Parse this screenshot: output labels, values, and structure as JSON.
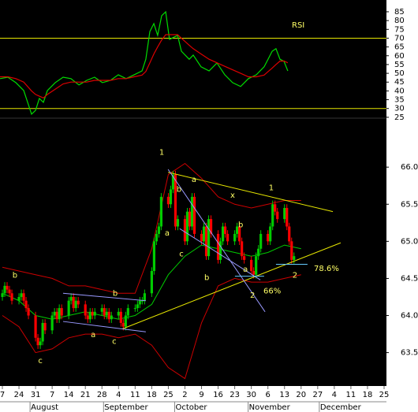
{
  "chart_data": [
    {
      "type": "line",
      "title": "RSI",
      "title_color": "#ffff66",
      "xlim": [
        -1,
        162
      ],
      "ylim": [
        24.5,
        91.7
      ],
      "yticks": [
        85,
        80,
        75,
        70,
        65,
        60,
        55,
        50,
        45,
        40,
        35,
        30,
        25
      ],
      "hlines": [
        70,
        30
      ],
      "hline_color": "#e6e600",
      "x": [
        -1,
        2.3,
        5.7,
        9.0,
        12.3,
        14.0,
        15.6,
        17.3,
        19.0,
        22.3,
        25.6,
        28.9,
        32.3,
        35.6,
        38.9,
        42.2,
        45.6,
        48.9,
        52.2,
        55.6,
        58.9,
        60.5,
        62.2,
        63.9,
        65.5,
        67.2,
        68.9,
        70.5,
        73.9,
        75.5,
        78.8,
        80.5,
        83.8,
        87.2,
        90.5,
        93.8,
        97.1,
        100.5,
        103.8,
        107.1,
        110.4,
        112.1,
        113.8,
        115.4,
        117.1,
        118.8,
        120.4
      ],
      "series": [
        {
          "color": "#00dd00",
          "values": [
            47,
            47.8,
            44.7,
            40.2,
            26.8,
            29,
            35.7,
            33.5,
            40.2,
            44.7,
            47.8,
            47,
            43.4,
            46,
            47.8,
            44.7,
            46,
            49.2,
            47,
            49.2,
            51.4,
            58,
            73.8,
            78.3,
            71.6,
            82.8,
            85,
            69.3,
            71.6,
            62.6,
            58,
            60.4,
            53.7,
            51.4,
            55.9,
            49.2,
            44.7,
            42.5,
            47,
            49.2,
            53.7,
            58.1,
            62.6,
            64,
            58,
            56.8,
            51.4
          ]
        },
        {
          "color": "#dd0000",
          "values": [
            48,
            48,
            47,
            45,
            40,
            38,
            37,
            36,
            38,
            41,
            44,
            45,
            45,
            45,
            46,
            46,
            46,
            47,
            47,
            48,
            49,
            51,
            56,
            61,
            65,
            69,
            72,
            72,
            72,
            70,
            66,
            64,
            61,
            58,
            56,
            54,
            52,
            50,
            48,
            48,
            49,
            51,
            53,
            55,
            57,
            57,
            56
          ]
        }
      ]
    },
    {
      "type": "candlestick",
      "xlim": [
        -1,
        162
      ],
      "ylim": [
        63.05,
        66.66
      ],
      "yticks": [
        {
          "value": 66,
          "label": "66.0"
        },
        65.5,
        {
          "value": 65,
          "label": "65.0"
        },
        64.5,
        {
          "value": 64,
          "label": "64.0"
        },
        63.5
      ],
      "xticks": [
        {
          "value": 0,
          "label": "7"
        },
        {
          "value": 7,
          "label": "24"
        },
        {
          "value": 14,
          "label": "31"
        },
        {
          "value": 21,
          "label": "7"
        },
        {
          "value": 28,
          "label": "14"
        },
        {
          "value": 35,
          "label": "21"
        },
        {
          "value": 42,
          "label": "28"
        },
        {
          "value": 49,
          "label": "4"
        },
        {
          "value": 56,
          "label": "11"
        },
        {
          "value": 63,
          "label": "18"
        },
        {
          "value": 70,
          "label": "25"
        },
        {
          "value": 77,
          "label": "2"
        },
        {
          "value": 84,
          "label": "9"
        },
        {
          "value": 91,
          "label": "16"
        },
        {
          "value": 98,
          "label": "23"
        },
        {
          "value": 105,
          "label": "30"
        },
        {
          "value": 112,
          "label": "6"
        },
        {
          "value": 119,
          "label": "13"
        },
        {
          "value": 126,
          "label": "20"
        },
        {
          "value": 133,
          "label": "27"
        },
        {
          "value": 140,
          "label": "4"
        },
        {
          "value": 147,
          "label": "11"
        },
        {
          "value": 154,
          "label": "18"
        },
        {
          "value": 161,
          "label": "25"
        }
      ],
      "month_ticks": [
        {
          "value": 15,
          "label": "August"
        },
        {
          "value": 46,
          "label": "September"
        },
        {
          "value": 76,
          "label": "October"
        },
        {
          "value": 107,
          "label": "November"
        },
        {
          "value": 137,
          "label": "December"
        }
      ],
      "up_color": "#00cc00",
      "down_color": "#ff0000",
      "x": [
        0,
        1,
        2,
        3,
        4,
        7,
        8,
        9,
        10,
        11,
        14,
        15,
        16,
        17,
        18,
        21,
        22,
        23,
        24,
        25,
        28,
        29,
        30,
        31,
        32,
        35,
        36,
        37,
        38,
        39,
        42,
        43,
        44,
        45,
        46,
        49,
        50,
        51,
        52,
        53,
        56,
        57,
        58,
        59,
        60,
        63,
        64,
        65,
        66,
        67,
        70,
        71,
        72,
        73,
        74,
        77,
        78,
        79,
        80,
        81,
        84,
        85,
        86,
        87,
        88,
        91,
        92,
        93,
        94,
        95,
        98,
        99,
        100,
        101,
        102,
        105,
        106,
        107,
        108,
        109,
        112,
        113,
        114,
        115,
        116,
        119,
        120,
        121,
        122,
        123
      ],
      "open": [
        64.25,
        64.3,
        64.4,
        64.35,
        64.3,
        64.2,
        64.25,
        64.3,
        64.2,
        64.1,
        64.0,
        63.7,
        63.6,
        63.65,
        63.9,
        63.8,
        64.0,
        64.05,
        63.95,
        64.1,
        64.0,
        64.2,
        64.25,
        64.1,
        64.2,
        64.15,
        64.0,
        63.95,
        64.05,
        64.0,
        64.05,
        64.1,
        64.0,
        64.05,
        63.95,
        64.0,
        64.05,
        63.9,
        63.85,
        64.0,
        64.1,
        64.1,
        64.15,
        64.2,
        64.2,
        64.3,
        64.6,
        65.0,
        65.1,
        65.2,
        65.6,
        65.5,
        65.7,
        65.9,
        65.2,
        65.3,
        65.0,
        65.4,
        65.2,
        65.6,
        65.1,
        65.0,
        65.2,
        64.8,
        65.3,
        65.1,
        64.75,
        65.0,
        65.2,
        65.1,
        65.0,
        65.1,
        65.2,
        65.0,
        64.8,
        64.75,
        64.6,
        64.55,
        64.8,
        64.9,
        65.1,
        65.0,
        65.2,
        65.5,
        65.4,
        65.3,
        65.45,
        65.2,
        65.0,
        64.75
      ],
      "high": [
        64.35,
        64.45,
        64.45,
        64.4,
        64.35,
        64.3,
        64.35,
        64.35,
        64.25,
        64.15,
        64.05,
        63.75,
        63.7,
        63.95,
        63.95,
        64.05,
        64.1,
        64.1,
        64.15,
        64.15,
        64.25,
        64.3,
        64.3,
        64.25,
        64.25,
        64.2,
        64.05,
        64.1,
        64.1,
        64.1,
        64.15,
        64.15,
        64.1,
        64.1,
        64.05,
        64.1,
        64.1,
        63.95,
        64.05,
        64.15,
        64.15,
        64.2,
        64.25,
        64.25,
        64.35,
        64.65,
        65.05,
        65.15,
        65.25,
        65.65,
        65.65,
        65.75,
        65.95,
        65.95,
        65.35,
        65.35,
        65.45,
        65.45,
        65.65,
        65.65,
        65.15,
        65.25,
        65.25,
        65.35,
        65.35,
        65.15,
        65.05,
        65.25,
        65.25,
        65.15,
        65.15,
        65.25,
        65.25,
        65.05,
        64.85,
        64.8,
        64.65,
        64.85,
        64.95,
        65.15,
        65.15,
        65.25,
        65.55,
        65.55,
        65.45,
        65.5,
        65.5,
        65.25,
        65.05,
        64.85
      ],
      "low": [
        64.2,
        64.25,
        64.3,
        64.25,
        64.15,
        64.15,
        64.2,
        64.15,
        64.05,
        63.95,
        63.65,
        63.55,
        63.55,
        63.6,
        63.75,
        63.75,
        63.95,
        63.9,
        63.9,
        63.95,
        63.95,
        64.15,
        64.05,
        64.05,
        64.1,
        63.95,
        63.9,
        63.9,
        63.95,
        63.95,
        64.0,
        63.95,
        63.95,
        63.9,
        63.9,
        63.95,
        63.85,
        63.8,
        63.8,
        63.95,
        64.05,
        64.05,
        64.1,
        64.15,
        64.15,
        64.25,
        64.55,
        64.95,
        65.05,
        65.15,
        65.45,
        65.45,
        65.65,
        65.15,
        65.15,
        64.95,
        64.95,
        65.15,
        65.15,
        65.05,
        64.95,
        64.95,
        64.75,
        64.75,
        65.05,
        64.7,
        64.7,
        64.95,
        65.05,
        64.95,
        64.95,
        65.05,
        64.95,
        64.75,
        64.7,
        64.55,
        64.5,
        64.5,
        64.75,
        64.85,
        64.95,
        64.95,
        65.15,
        65.35,
        65.25,
        65.25,
        65.15,
        64.95,
        64.7,
        64.7
      ],
      "close": [
        64.3,
        64.4,
        64.35,
        64.3,
        64.2,
        64.25,
        64.3,
        64.2,
        64.1,
        64.0,
        63.7,
        63.6,
        63.65,
        63.9,
        63.8,
        64.0,
        64.05,
        63.95,
        64.1,
        64.0,
        64.2,
        64.25,
        64.1,
        64.2,
        64.15,
        64.0,
        63.95,
        64.05,
        64.0,
        64.05,
        64.1,
        64.0,
        64.05,
        63.95,
        64.0,
        64.05,
        63.9,
        63.85,
        64.0,
        64.1,
        64.1,
        64.15,
        64.2,
        64.2,
        64.3,
        64.6,
        65.0,
        65.1,
        65.2,
        65.6,
        65.5,
        65.7,
        65.9,
        65.2,
        65.3,
        65.0,
        65.4,
        65.2,
        65.6,
        65.1,
        65.0,
        65.2,
        64.8,
        65.3,
        65.1,
        64.75,
        65.0,
        65.2,
        65.1,
        65.0,
        65.1,
        65.2,
        65.0,
        64.8,
        64.75,
        64.6,
        64.55,
        64.8,
        64.9,
        65.1,
        65.0,
        65.2,
        65.5,
        65.4,
        65.3,
        65.45,
        65.2,
        65.0,
        64.75,
        64.8
      ],
      "bands": {
        "x": [
          0,
          7,
          14,
          21,
          28,
          35,
          42,
          49,
          56,
          63,
          70,
          77,
          84,
          91,
          98,
          105,
          112,
          119,
          126
        ],
        "lines": [
          {
            "color": "#cc0000",
            "values": [
              64.65,
              64.6,
              64.55,
              64.5,
              64.4,
              64.4,
              64.35,
              64.3,
              64.3,
              64.9,
              65.9,
              66.05,
              65.85,
              65.6,
              65.5,
              65.45,
              65.5,
              65.55,
              65.55
            ]
          },
          {
            "color": "#cc0000",
            "values": [
              64.0,
              63.85,
              63.5,
              63.55,
              63.7,
              63.75,
              63.75,
              63.7,
              63.75,
              63.6,
              63.3,
              63.15,
              63.9,
              64.4,
              64.5,
              64.45,
              64.45,
              64.5,
              64.55
            ]
          },
          {
            "color": "#00cc00",
            "values": [
              64.3,
              64.2,
              64.0,
              63.95,
              64.0,
              64.05,
              64.0,
              63.95,
              64.0,
              64.15,
              64.55,
              64.8,
              64.95,
              64.9,
              64.85,
              64.8,
              64.85,
              64.95,
              64.9
            ]
          }
        ]
      },
      "trendlines": [
        {
          "color": "#e6e600",
          "x": [
            69.9,
            139.4
          ],
          "y": [
            65.93,
            65.4
          ]
        },
        {
          "color": "#e6e600",
          "x": [
            50.6,
            142.7
          ],
          "y": [
            63.82,
            64.98
          ]
        },
        {
          "color": "#9999ff",
          "x": [
            69.9,
            110.8
          ],
          "y": [
            65.97,
            64.05
          ]
        },
        {
          "color": "#9999ff",
          "x": [
            74.8,
            108.8
          ],
          "y": [
            65.17,
            64.48
          ]
        },
        {
          "color": "#66ccff",
          "x": [
            98.1,
            110.4
          ],
          "y": [
            64.53,
            64.53
          ]
        },
        {
          "color": "#66ccff",
          "x": [
            115.4,
            128.7
          ],
          "y": [
            64.69,
            64.69
          ]
        },
        {
          "color": "#9999ff",
          "x": [
            25.6,
            60.5
          ],
          "y": [
            64.3,
            64.2
          ]
        },
        {
          "color": "#9999ff",
          "x": [
            25.6,
            60.5
          ],
          "y": [
            63.92,
            63.78
          ]
        }
      ],
      "annotation_color": "#ffff66",
      "annotations": [
        {
          "text": "1",
          "x": 67.2,
          "y": 66.2
        },
        {
          "text": "b",
          "x": 74.5,
          "y": 65.7
        },
        {
          "text": "a",
          "x": 80.8,
          "y": 65.83
        },
        {
          "text": "x",
          "x": 97.1,
          "y": 65.62
        },
        {
          "text": "a",
          "x": 69.5,
          "y": 65.11
        },
        {
          "text": "c",
          "x": 75.5,
          "y": 64.83
        },
        {
          "text": "b",
          "x": 86.2,
          "y": 64.51
        },
        {
          "text": "b",
          "x": 100.5,
          "y": 65.22
        },
        {
          "text": "a",
          "x": 102.5,
          "y": 64.62
        },
        {
          "text": "1",
          "x": 113.4,
          "y": 65.72
        },
        {
          "text": "2",
          "x": 105.5,
          "y": 64.27
        },
        {
          "text": "2",
          "x": 123.4,
          "y": 64.54
        },
        {
          "text": "78.6%",
          "x": 136.7,
          "y": 64.63
        },
        {
          "text": "66%",
          "x": 113.8,
          "y": 64.33
        },
        {
          "text": "b",
          "x": 5.3,
          "y": 64.54
        },
        {
          "text": "c",
          "x": 16.0,
          "y": 63.39
        },
        {
          "text": "b",
          "x": 47.6,
          "y": 64.3
        },
        {
          "text": "a",
          "x": 38.3,
          "y": 63.74
        },
        {
          "text": "c",
          "x": 47.2,
          "y": 63.65
        }
      ]
    }
  ]
}
